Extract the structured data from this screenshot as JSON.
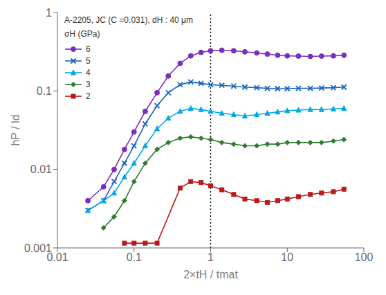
{
  "chart_data": {
    "type": "line",
    "title": "A-2205, JC (C =0.031), dH : 40 μm",
    "x_label": "2×tH / tmat",
    "y_label": "hP / ld",
    "annotations": [
      "σH (GPa)"
    ],
    "log": true,
    "grid": false,
    "legend": "upper left",
    "xlim": [
      0.01,
      100
    ],
    "ylim": [
      0.001,
      1
    ],
    "xticks": [
      0.01,
      0.1,
      1,
      10,
      100
    ],
    "yticks": [
      0.001,
      0.01,
      0.1,
      1
    ],
    "vline": 1.0,
    "series": [
      {
        "name": "6",
        "color": "#7B2FBE",
        "marker": "circle",
        "x": [
          0.025,
          0.04,
          0.055,
          0.075,
          0.1,
          0.14,
          0.2,
          0.28,
          0.4,
          0.55,
          0.75,
          1.0,
          1.4,
          2.0,
          2.8,
          4.0,
          5.5,
          7.5,
          10,
          14,
          20,
          28,
          40,
          55
        ],
        "values": [
          0.004,
          0.006,
          0.01,
          0.018,
          0.03,
          0.055,
          0.095,
          0.155,
          0.225,
          0.28,
          0.31,
          0.325,
          0.33,
          0.325,
          0.315,
          0.305,
          0.295,
          0.285,
          0.28,
          0.278,
          0.275,
          0.278,
          0.28,
          0.285
        ]
      },
      {
        "name": "5",
        "color": "#1565C0",
        "marker": "x",
        "x": [
          0.025,
          0.04,
          0.055,
          0.075,
          0.1,
          0.14,
          0.2,
          0.28,
          0.4,
          0.55,
          0.75,
          1.0,
          1.4,
          2.0,
          2.8,
          4.0,
          5.5,
          7.5,
          10,
          14,
          20,
          28,
          40,
          55
        ],
        "values": [
          0.003,
          0.004,
          0.007,
          0.012,
          0.02,
          0.038,
          0.065,
          0.095,
          0.12,
          0.13,
          0.125,
          0.12,
          0.118,
          0.115,
          0.112,
          0.11,
          0.108,
          0.107,
          0.107,
          0.108,
          0.108,
          0.109,
          0.11,
          0.112
        ]
      },
      {
        "name": "4",
        "color": "#00A8E8",
        "marker": "triangle",
        "x": [
          0.025,
          0.04,
          0.055,
          0.075,
          0.1,
          0.14,
          0.2,
          0.28,
          0.4,
          0.55,
          0.75,
          1.0,
          1.4,
          2.0,
          2.8,
          4.0,
          5.5,
          7.5,
          10,
          14,
          20,
          28,
          40,
          55
        ],
        "values": [
          0.003,
          0.004,
          0.005,
          0.008,
          0.012,
          0.02,
          0.033,
          0.045,
          0.055,
          0.06,
          0.058,
          0.055,
          0.052,
          0.05,
          0.048,
          0.05,
          0.052,
          0.054,
          0.056,
          0.057,
          0.058,
          0.058,
          0.059,
          0.06
        ]
      },
      {
        "name": "3",
        "color": "#2E7D32",
        "marker": "diamond",
        "x": [
          0.04,
          0.055,
          0.075,
          0.1,
          0.14,
          0.2,
          0.28,
          0.4,
          0.55,
          0.75,
          1.0,
          1.4,
          2.0,
          2.8,
          4.0,
          5.5,
          7.5,
          10,
          14,
          20,
          28,
          40,
          55
        ],
        "values": [
          0.0018,
          0.0025,
          0.004,
          0.007,
          0.012,
          0.018,
          0.022,
          0.025,
          0.026,
          0.025,
          0.024,
          0.022,
          0.021,
          0.02,
          0.02,
          0.021,
          0.021,
          0.022,
          0.022,
          0.022,
          0.022,
          0.023,
          0.024
        ]
      },
      {
        "name": "2",
        "color": "#B71C1C",
        "marker": "square",
        "x": [
          0.075,
          0.1,
          0.14,
          0.2,
          0.4,
          0.55,
          0.75,
          1.0,
          1.4,
          2.0,
          2.8,
          4.0,
          5.5,
          7.5,
          10,
          14,
          20,
          28,
          40,
          55
        ],
        "values": [
          0.00115,
          0.00115,
          0.00115,
          0.00115,
          0.0058,
          0.007,
          0.0068,
          0.0062,
          0.0055,
          0.0048,
          0.0042,
          0.004,
          0.0038,
          0.004,
          0.0042,
          0.0045,
          0.0048,
          0.005,
          0.0052,
          0.0056
        ]
      }
    ]
  }
}
